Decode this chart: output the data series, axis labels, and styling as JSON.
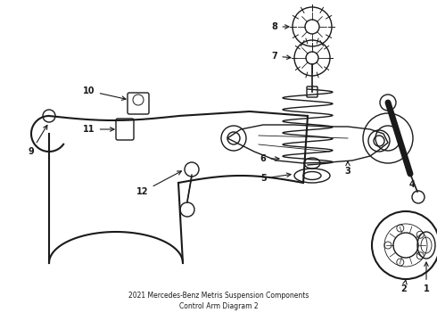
{
  "title": "2021 Mercedes-Benz Metris Suspension Components\nControl Arm Diagram 2",
  "bg_color": "#ffffff",
  "line_color": "#1a1a1a",
  "fig_width": 4.9,
  "fig_height": 3.6,
  "dpi": 100
}
